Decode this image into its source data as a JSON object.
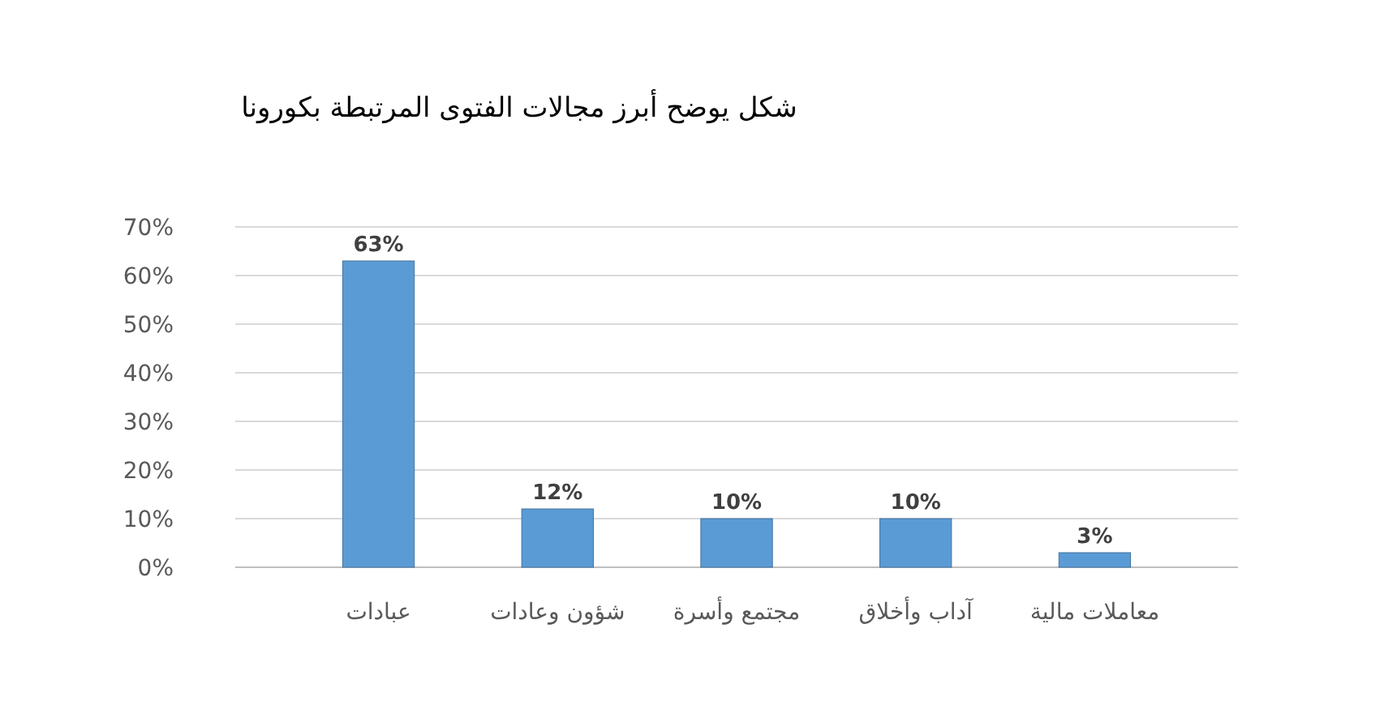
{
  "chart_data": {
    "type": "bar",
    "title": "شكل يوضح  أبرز مجالات الفتوى المرتبطة بكورونا",
    "categories": [
      "عبادات",
      "شؤون وعادات",
      "مجتمع وأسرة",
      "آداب وأخلاق",
      "معاملات مالية"
    ],
    "values": [
      63,
      12,
      10,
      10,
      3
    ],
    "value_labels": [
      "63%",
      "12%",
      "10%",
      "10%",
      "3%"
    ],
    "color": "#5b9bd5",
    "ylim": [
      0,
      70
    ],
    "yticks": [
      {
        "value": 0,
        "label": "0%"
      },
      {
        "value": 10,
        "label": "10%"
      },
      {
        "value": 20,
        "label": "20%"
      },
      {
        "value": 30,
        "label": "30%"
      },
      {
        "value": 40,
        "label": "40%"
      },
      {
        "value": 50,
        "label": "50%"
      },
      {
        "value": 60,
        "label": "60%"
      },
      {
        "value": 70,
        "label": "70%"
      }
    ],
    "grid": "y"
  }
}
